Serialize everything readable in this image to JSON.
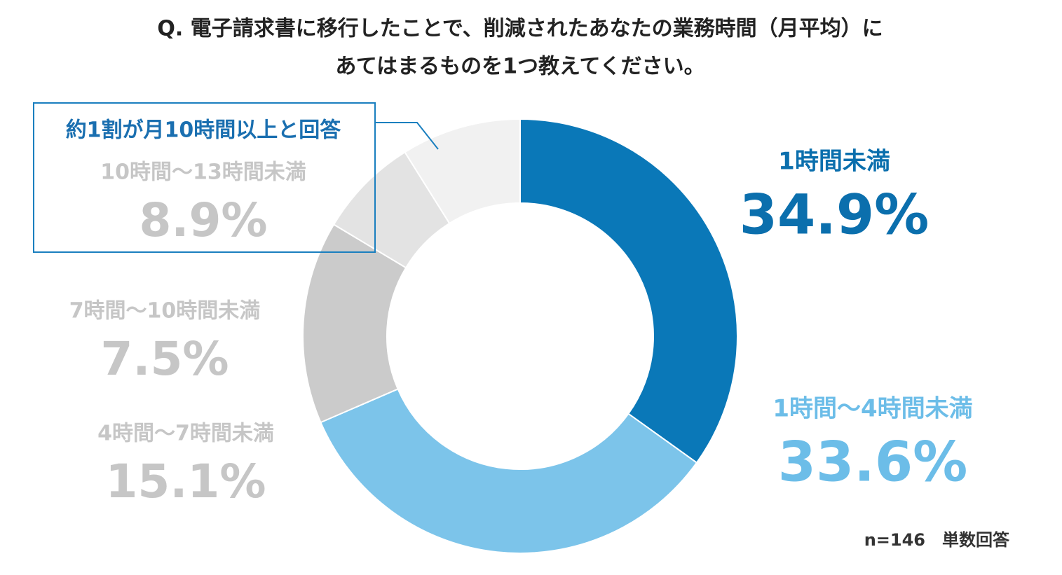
{
  "chart_data": {
    "type": "donut",
    "title": [
      "Q. 電子請求書に移行したことで、削減されたあなたの業務時間（月平均）に",
      "あてはまるものを1つ教えてください。"
    ],
    "categories": [
      "1時間未満",
      "1時間〜4時間未満",
      "4時間〜7時間未満",
      "7時間〜10時間未満",
      "10時間〜13時間未満"
    ],
    "values": [
      34.9,
      33.6,
      15.1,
      7.5,
      8.9
    ],
    "value_labels": [
      "34.9%",
      "33.6%",
      "15.1%",
      "7.5%",
      "8.9%"
    ],
    "colors": [
      "#0a78b8",
      "#7cc4ea",
      "#cbcbcb",
      "#e3e3e3",
      "#f1f1f1"
    ],
    "label_colors": [
      "#0b6fad",
      "#6cbde8",
      "#c6c6c6",
      "#c6c6c6",
      "#c6c6c6"
    ],
    "annotation": "約1割が月10時間以上と回答",
    "note": "n=146　単数回答"
  }
}
